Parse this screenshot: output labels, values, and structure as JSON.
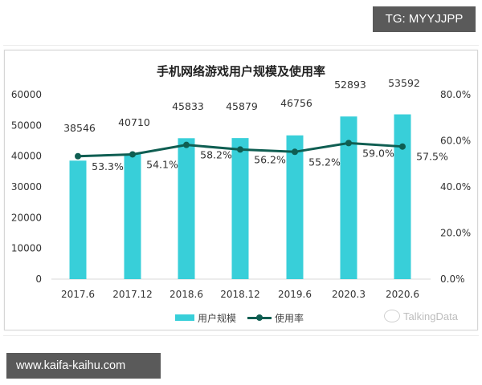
{
  "badges": {
    "top_right": "TG: MYYJJPP",
    "bottom_left": "www.kaifa-kaihu.com"
  },
  "watermark": "TalkingData",
  "colors": {
    "bar": "#38cfd9",
    "line": "#0f5e52",
    "axis_text": "#333333",
    "baseline": "#d9d9d9"
  },
  "chart_data": {
    "type": "bar+line",
    "title": "手机网络游戏用户规模及使用率",
    "categories": [
      "2017.6",
      "2017.12",
      "2018.6",
      "2018.12",
      "2019.6",
      "2020.3",
      "2020.6"
    ],
    "series": [
      {
        "name": "用户规模",
        "type": "bar",
        "axis": "left",
        "values": [
          38546,
          40710,
          45833,
          45879,
          46756,
          52893,
          53592
        ],
        "labels": [
          "38546",
          "40710",
          "45833",
          "45879",
          "46756",
          "52893",
          "53592"
        ]
      },
      {
        "name": "使用率",
        "type": "line",
        "axis": "right",
        "values": [
          53.3,
          54.1,
          58.2,
          56.2,
          55.2,
          59.0,
          57.5
        ],
        "labels": [
          "53.3%",
          "54.1%",
          "58.2%",
          "56.2%",
          "55.2%",
          "59.0%",
          "57.5%"
        ]
      }
    ],
    "left_axis": {
      "ticks": [
        "0",
        "10000",
        "20000",
        "30000",
        "40000",
        "50000",
        "60000"
      ],
      "range": [
        0,
        60000
      ]
    },
    "right_axis": {
      "ticks": [
        "0.0%",
        "20.0%",
        "40.0%",
        "60.0%",
        "80.0%"
      ],
      "range": [
        0,
        80
      ]
    },
    "xlabel": "",
    "ylabel": "",
    "grid": false,
    "legend_position": "bottom"
  }
}
